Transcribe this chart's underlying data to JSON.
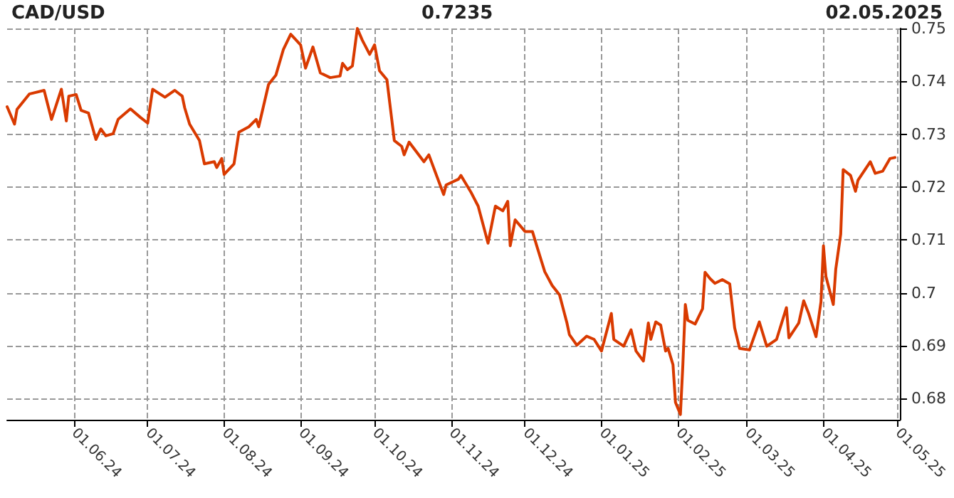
{
  "chart_data": {
    "type": "line",
    "title": "CAD/USD",
    "subtitle": "0.7235",
    "annotations": [
      "02.05.2025"
    ],
    "x": [
      "2024-05-05",
      "2024-05-08",
      "2024-05-09",
      "2024-05-14",
      "2024-05-20",
      "2024-05-23",
      "2024-05-27",
      "2024-05-29",
      "2024-05-30",
      "2024-06-02",
      "2024-06-04",
      "2024-06-07",
      "2024-06-10",
      "2024-06-12",
      "2024-06-14",
      "2024-06-17",
      "2024-06-19",
      "2024-06-24",
      "2024-06-28",
      "2024-07-01",
      "2024-07-03",
      "2024-07-08",
      "2024-07-12",
      "2024-07-15",
      "2024-07-16",
      "2024-07-18",
      "2024-07-22",
      "2024-07-24",
      "2024-07-28",
      "2024-07-29",
      "2024-07-31",
      "2024-08-01",
      "2024-08-05",
      "2024-08-07",
      "2024-08-11",
      "2024-08-14",
      "2024-08-15",
      "2024-08-19",
      "2024-08-22",
      "2024-08-25",
      "2024-08-28",
      "2024-09-01",
      "2024-09-03",
      "2024-09-06",
      "2024-09-09",
      "2024-09-13",
      "2024-09-17",
      "2024-09-18",
      "2024-09-20",
      "2024-09-22",
      "2024-09-24",
      "2024-09-26",
      "2024-09-29",
      "2024-10-01",
      "2024-10-03",
      "2024-10-06",
      "2024-10-09",
      "2024-10-12",
      "2024-10-13",
      "2024-10-15",
      "2024-10-21",
      "2024-10-23",
      "2024-10-29",
      "2024-10-30",
      "2024-11-04",
      "2024-11-05",
      "2024-11-09",
      "2024-11-12",
      "2024-11-16",
      "2024-11-19",
      "2024-11-22",
      "2024-11-24",
      "2024-11-25",
      "2024-11-27",
      "2024-12-01",
      "2024-12-04",
      "2024-12-06",
      "2024-12-09",
      "2024-12-12",
      "2024-12-15",
      "2024-12-18",
      "2024-12-19",
      "2024-12-22",
      "2024-12-26",
      "2024-12-29",
      "2025-01-01",
      "2025-01-04",
      "2025-01-05",
      "2025-01-06",
      "2025-01-10",
      "2025-01-13",
      "2025-01-15",
      "2025-01-18",
      "2025-01-20",
      "2025-01-21",
      "2025-01-23",
      "2025-01-25",
      "2025-01-27",
      "2025-01-28",
      "2025-01-30",
      "2025-01-31",
      "2025-02-02",
      "2025-02-03",
      "2025-02-04",
      "2025-02-05",
      "2025-02-08",
      "2025-02-11",
      "2025-02-12",
      "2025-02-14",
      "2025-02-16",
      "2025-02-19",
      "2025-02-22",
      "2025-02-24",
      "2025-02-26",
      "2025-03-02",
      "2025-03-06",
      "2025-03-09",
      "2025-03-13",
      "2025-03-17",
      "2025-03-18",
      "2025-03-22",
      "2025-03-24",
      "2025-03-26",
      "2025-03-29",
      "2025-03-31",
      "2025-04-01",
      "2025-04-02",
      "2025-04-05",
      "2025-04-06",
      "2025-04-08",
      "2025-04-09",
      "2025-04-12",
      "2025-04-14",
      "2025-04-15",
      "2025-04-20",
      "2025-04-22",
      "2025-04-25",
      "2025-04-28",
      "2025-04-30"
    ],
    "series": [
      {
        "color": "#d93a00",
        "values": [
          0.7352,
          0.7319,
          0.7347,
          0.7376,
          0.7383,
          0.7328,
          0.7385,
          0.7325,
          0.7372,
          0.7375,
          0.7345,
          0.734,
          0.729,
          0.731,
          0.7297,
          0.7301,
          0.7328,
          0.7348,
          0.7332,
          0.7321,
          0.7385,
          0.737,
          0.7383,
          0.7372,
          0.735,
          0.7319,
          0.7288,
          0.7244,
          0.7248,
          0.7237,
          0.7254,
          0.7224,
          0.7244,
          0.7304,
          0.7314,
          0.7328,
          0.7314,
          0.7394,
          0.7412,
          0.746,
          0.7489,
          0.7469,
          0.7425,
          0.7465,
          0.7416,
          0.7407,
          0.741,
          0.7434,
          0.7422,
          0.7429,
          0.75,
          0.7478,
          0.7451,
          0.7469,
          0.742,
          0.7403,
          0.7288,
          0.7277,
          0.7261,
          0.7285,
          0.7248,
          0.7261,
          0.7186,
          0.7204,
          0.7215,
          0.7222,
          0.7191,
          0.7164,
          0.7094,
          0.7164,
          0.7155,
          0.7173,
          0.7089,
          0.7138,
          0.7116,
          0.7116,
          0.7085,
          0.704,
          0.7014,
          0.6996,
          0.6943,
          0.6921,
          0.6901,
          0.6918,
          0.6912,
          0.689,
          0.6943,
          0.6961,
          0.6912,
          0.6899,
          0.693,
          0.689,
          0.6871,
          0.6943,
          0.6912,
          0.6945,
          0.6939,
          0.689,
          0.6895,
          0.6864,
          0.6793,
          0.677,
          0.6864,
          0.6978,
          0.6948,
          0.6941,
          0.697,
          0.7039,
          0.7027,
          0.7018,
          0.7025,
          0.7017,
          0.6934,
          0.6895,
          0.6892,
          0.6945,
          0.6899,
          0.6912,
          0.6972,
          0.6915,
          0.6943,
          0.6985,
          0.6961,
          0.6917,
          0.6983,
          0.7089,
          0.7031,
          0.6978,
          0.7045,
          0.7111,
          0.7233,
          0.7222,
          0.7192,
          0.7213,
          0.7248,
          0.7226,
          0.723,
          0.7254,
          0.7256
        ]
      }
    ],
    "xlim": [
      "2024-05-05",
      "2025-05-02"
    ],
    "xticks": [
      {
        "value": "2024-06-01",
        "label": "01.06.24"
      },
      {
        "value": "2024-07-01",
        "label": "01.07.24"
      },
      {
        "value": "2024-08-01",
        "label": "01.08.24"
      },
      {
        "value": "2024-09-01",
        "label": "01.09.24"
      },
      {
        "value": "2024-10-01",
        "label": "01.10.24"
      },
      {
        "value": "2024-11-01",
        "label": "01.11.24"
      },
      {
        "value": "2024-12-01",
        "label": "01.12.24"
      },
      {
        "value": "2025-01-01",
        "label": "01.01.25"
      },
      {
        "value": "2025-02-01",
        "label": "01.02.25"
      },
      {
        "value": "2025-03-01",
        "label": "01.03.25"
      },
      {
        "value": "2025-04-01",
        "label": "01.04.25"
      },
      {
        "value": "2025-05-01",
        "label": "01.05.25"
      }
    ],
    "ylim": [
      0.676,
      0.75
    ],
    "yticks": [
      0.68,
      0.69,
      0.7,
      0.71,
      0.72,
      0.73,
      0.74,
      0.75
    ],
    "grid": true,
    "marker": "none",
    "line_style": "solid"
  }
}
